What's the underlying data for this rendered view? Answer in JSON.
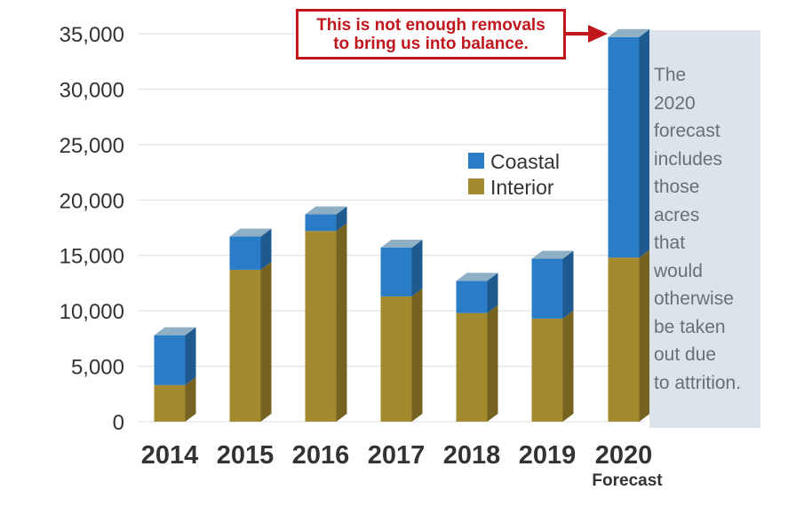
{
  "chart_data": {
    "type": "bar",
    "stacked": true,
    "categories": [
      "2014",
      "2015",
      "2016",
      "2017",
      "2018",
      "2019",
      "2020"
    ],
    "category_sublabels": [
      "",
      "",
      "",
      "",
      "",
      "",
      "Forecast"
    ],
    "series": [
      {
        "name": "Interior",
        "values": [
          3300,
          13700,
          17200,
          11300,
          9800,
          9300,
          14800
        ]
      },
      {
        "name": "Coastal",
        "values": [
          4500,
          3000,
          1500,
          4400,
          2900,
          5400,
          19900
        ]
      }
    ],
    "colors": {
      "Coastal": "#2a7cc7",
      "Interior": "#a48a2e"
    },
    "legend_order": [
      "Coastal",
      "Interior"
    ],
    "legend_position": "inside-upper-right",
    "ylim": [
      0,
      35000
    ],
    "yticks": [
      "0",
      "5,000",
      "10,000",
      "15,000",
      "20,000",
      "25,000",
      "30,000",
      "35,000"
    ],
    "grid": true,
    "style": "3d-extruded-bars",
    "callout": {
      "lines": [
        "This is not enough removals",
        "to bring us into balance."
      ],
      "color": "#c0171d",
      "points_to": "2020"
    },
    "note": {
      "lines": [
        "The",
        "2020",
        "forecast",
        "includes",
        "those",
        "acres",
        "that",
        "would",
        "otherwise",
        "be taken",
        "out due",
        "to attrition."
      ]
    }
  }
}
